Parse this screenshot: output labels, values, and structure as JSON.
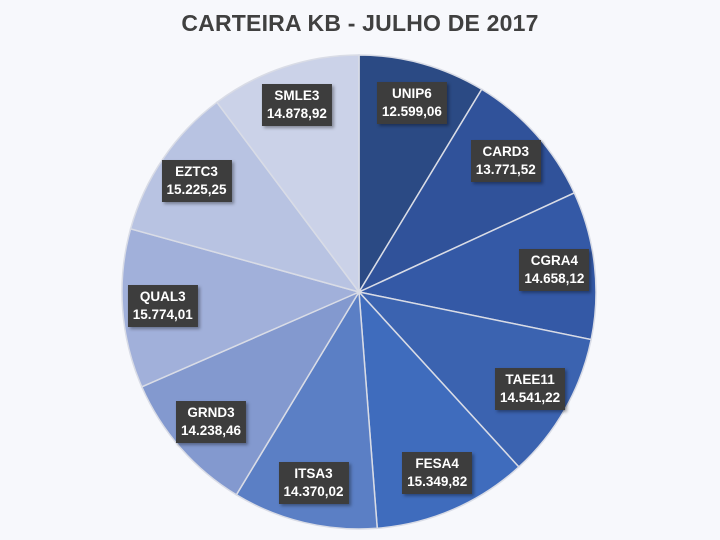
{
  "chart_data": {
    "type": "pie",
    "title": "CARTEIRA KB - JULHO DE 2017",
    "categories": [
      "UNIP6",
      "CARD3",
      "CGRA4",
      "TAEE11",
      "FESA4",
      "ITSA3",
      "GRND3",
      "QUAL3",
      "EZTC3",
      "SMLE3"
    ],
    "values": [
      12599.06,
      13771.52,
      14658.12,
      14541.22,
      15349.82,
      14370.02,
      14238.46,
      15774.01,
      15225.25,
      14878.92
    ],
    "value_labels": [
      "12.599,06",
      "13.771,52",
      "14.658,12",
      "14.541,22",
      "15.349,82",
      "14.370,02",
      "14.238,46",
      "15.774,01",
      "15.225,25",
      "14.878,92"
    ],
    "colors": [
      "#2b4a84",
      "#30529a",
      "#3459a6",
      "#3b63b0",
      "#3f6cbd",
      "#5b7fc5",
      "#8399cf",
      "#a1b0da",
      "#b8c3e2",
      "#cbd2e8"
    ],
    "legend": "none",
    "start_angle_deg": 0,
    "direction": "clockwise"
  }
}
